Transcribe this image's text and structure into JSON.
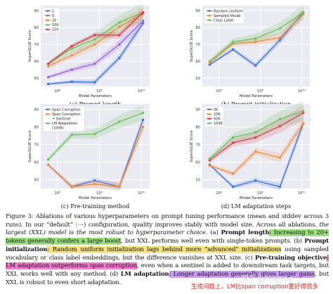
{
  "chart_data": [
    {
      "type": "line",
      "panel": "a",
      "caption": "(a) Prompt length",
      "xlabel": "Model Parameters",
      "ylabel": "SuperGLUE Score",
      "xscale": "log",
      "x": [
        60000000,
        220000000,
        770000000,
        3000000000,
        11000000000
      ],
      "xticks": [
        "10⁸",
        "10⁹",
        "10¹⁰"
      ],
      "yticks": [
        "50",
        "60",
        "70",
        "80",
        "90"
      ],
      "ylim": [
        45,
        93
      ],
      "grid": true,
      "legend": "top-left",
      "series": [
        {
          "name": "1",
          "color": "#3b6fd8",
          "values": [
            46.5,
            47.8,
            47.5,
            62,
            82.5
          ]
        },
        {
          "name": "5",
          "color": "#9a5cd6",
          "values": [
            50.5,
            55,
            58.5,
            70,
            84
          ]
        },
        {
          "name": "20",
          "color": "#f28a3b",
          "values": [
            57,
            63.5,
            70,
            80.5,
            88
          ]
        },
        {
          "name": "100",
          "color": "#6bbf59",
          "values": [
            58.5,
            67.5,
            73,
            83,
            89
          ]
        },
        {
          "name": "150",
          "color": "#e0334a",
          "values": [
            58.5,
            69,
            75.5,
            75.5,
            89
          ]
        }
      ]
    },
    {
      "type": "line",
      "panel": "b",
      "caption": "(b) Prompt initialization",
      "xlabel": "Model Parameters",
      "ylabel": "SuperGLUE Score",
      "xscale": "log",
      "x": [
        60000000,
        220000000,
        770000000,
        3000000000,
        11000000000
      ],
      "xticks": [
        "10⁸",
        "10⁹",
        "10¹⁰"
      ],
      "yticks": [
        "50",
        "60",
        "70",
        "80",
        "90"
      ],
      "ylim": [
        45,
        93
      ],
      "grid": true,
      "legend": "top-left",
      "series": [
        {
          "name": "Random Uniform",
          "color": "#3b6fd8",
          "values": [
            58,
            67,
            57.5,
            72.5,
            89
          ]
        },
        {
          "name": "Sampled Vocab",
          "color": "#f28a3b",
          "values": [
            59,
            70.5,
            71.5,
            74,
            88
          ]
        },
        {
          "name": "Class Label",
          "color": "#6bbf59",
          "values": [
            60,
            71.5,
            73.5,
            79.5,
            89
          ]
        }
      ]
    },
    {
      "type": "line",
      "panel": "c",
      "caption": "(c) Pre-training method",
      "xlabel": "Model Parameters",
      "ylabel": "SuperGLUE Score",
      "xscale": "log",
      "x": [
        60000000,
        220000000,
        770000000,
        3000000000,
        11000000000
      ],
      "xticks": [
        "10⁸",
        "10⁹",
        "10¹⁰"
      ],
      "yticks": [
        "50",
        "60",
        "70",
        "80",
        "90"
      ],
      "ylim": [
        45,
        93
      ],
      "grid": true,
      "legend": "top-left",
      "series": [
        {
          "name": "Span Corruption",
          "color": "#3b6fd8",
          "values": [
            58.5,
            46,
            49.5,
            46,
            84
          ]
        },
        {
          "name": "Span Corruption + Sentinel",
          "color": "#f28a3b",
          "values": [
            58.5,
            46,
            47.5,
            46,
            80
          ]
        },
        {
          "name": "LM Adaptation (100K)",
          "color": "#6bbf59",
          "values": [
            61.5,
            75.5,
            76,
            83,
            88
          ]
        }
      ]
    },
    {
      "type": "line",
      "panel": "d",
      "caption": "(d) LM adaptation steps",
      "xlabel": "Model Parameters",
      "ylabel": "SuperGLUE Score",
      "xscale": "log",
      "x": [
        60000000,
        220000000,
        770000000,
        3000000000,
        11000000000
      ],
      "xticks": [
        "10⁸",
        "10⁹",
        "10¹⁰"
      ],
      "yticks": [
        "50",
        "60",
        "70",
        "80",
        "90"
      ],
      "ylim": [
        45,
        93
      ],
      "grid": true,
      "legend": "top-left",
      "series": [
        {
          "name": "0K",
          "color": "#3b6fd8",
          "values": [
            58.5,
            46,
            49.5,
            46,
            82
          ]
        },
        {
          "name": "10K",
          "color": "#f28a3b",
          "values": [
            58,
            53.5,
            66,
            62.5,
            82
          ]
        },
        {
          "name": "50K",
          "color": "#e0334a",
          "values": [
            61,
            71,
            74,
            80.5,
            88
          ]
        },
        {
          "name": "100K",
          "color": "#6bbf59",
          "values": [
            62,
            74,
            77,
            84.5,
            89
          ]
        }
      ]
    }
  ],
  "caption": {
    "s1": "Figure 3: Ablations of various hyperparameters on prompt tuning performance (mean and stddev across 3 runs). In our “",
    "default_word": "default",
    "default_arrow": "(–",
    "s2": "–) configuration, quality improves stably with model size. Across all ablations, ",
    "s3_italic": "the largest (XXL) model is the most robust to hyperparameter choice",
    "s4": ". (a) ",
    "a_bold": "Prompt length",
    "a_hl": ": Increasing to 20+ tokens generally confers a large boost",
    "a_rest": ", but XXL performs well even with single-token prompts. (b) ",
    "b_bold": "Prompt initialization",
    "b_hl": ": Random uniform initialization lags behind more “advanced” initializations",
    "b_rest": " using sampled vocabulary or class label embeddings, but the difference vanishes at XXL size. (c) ",
    "c_bold": "Pre-training objective",
    "c_hl": ": LM adaptation outperforms span corruption",
    "c_rest": ", even when a sentinel is added to downstream task targets, but XXL works well with any method. (d) ",
    "d_bold": "LM adaptation",
    "d_hl": ": Longer adaptation generally gives larger gains",
    "d_rest": ", but XXL is robust to even short adaptation."
  },
  "overlay_note": "生成问题上，LM比span corruption要好得很多",
  "watermark": "知乎 @hxshine"
}
